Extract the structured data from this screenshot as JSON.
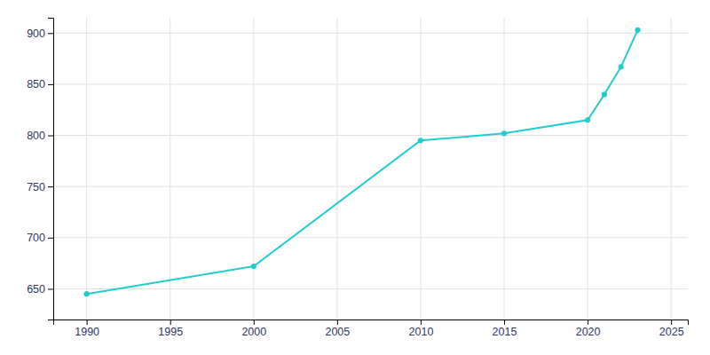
{
  "chart_data": {
    "type": "line",
    "x": [
      1990,
      2000,
      2010,
      2015,
      2020,
      2021,
      2022,
      2023
    ],
    "values": [
      645,
      672,
      795,
      802,
      815,
      840,
      867,
      903
    ],
    "color": "#22CCCC",
    "marker": "circle",
    "xlim": [
      1988,
      2026
    ],
    "ylim": [
      620,
      915
    ],
    "xticks": [
      1990,
      1995,
      2000,
      2005,
      2010,
      2015,
      2020,
      2025
    ],
    "yticks": [
      650,
      700,
      750,
      800,
      850,
      900
    ],
    "grid": true
  }
}
